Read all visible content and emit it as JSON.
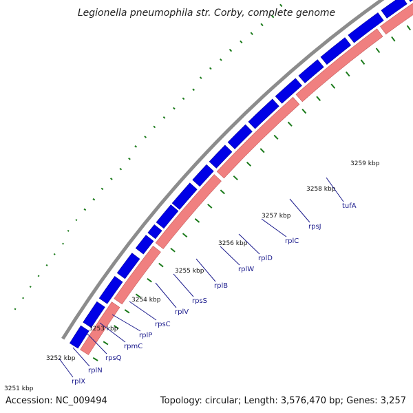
{
  "title": "Legionella pneumophila str. Corby, complete genome",
  "accession_label": "Accession: NC_009494",
  "topology_label": "Topology: circular; Length: 3,576,470 bp; Genes: 3,257",
  "colors": {
    "backbone": "#8c8c8c",
    "forward_track": "#0000e6",
    "reverse_track": "#f08080",
    "dots": "#1a7a1a",
    "gene_label": "#1a1a8c"
  },
  "ticks": [
    "3251 kbp",
    "3252 kbp",
    "3253 kbp",
    "3254 kbp",
    "3255 kbp",
    "3256 kbp",
    "3257 kbp",
    "3258 kbp",
    "3259 kbp"
  ],
  "genes": [
    "rplX",
    "rplN",
    "rpsQ",
    "rpmC",
    "rplP",
    "rpsC",
    "rplV",
    "rpsS",
    "rplB",
    "rplW",
    "rplD",
    "rplC",
    "rpsJ",
    "tufA"
  ]
}
